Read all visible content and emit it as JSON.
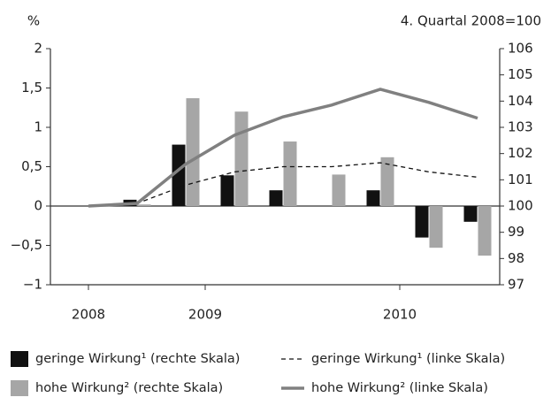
{
  "chart_data": {
    "type": "bar",
    "ylabel": "%",
    "y2label": "4. Quartal 2008=100",
    "x": [
      0,
      1,
      2,
      3,
      4,
      5,
      6,
      7,
      8
    ],
    "xlim": [
      0,
      8
    ],
    "xticks": [
      {
        "value": 0,
        "label": "2008"
      },
      {
        "value": 2.4,
        "label": "2009"
      },
      {
        "value": 6.4,
        "label": "2010"
      }
    ],
    "ylim": [
      -1,
      2
    ],
    "yticks": [
      {
        "value": -1,
        "label": "−1"
      },
      {
        "value": -0.5,
        "label": "−0,5"
      },
      0,
      {
        "value": 0.5,
        "label": "0,5"
      },
      1,
      {
        "value": 1.5,
        "label": "1,5"
      },
      2
    ],
    "y2lim": [
      97,
      106
    ],
    "y2ticks": [
      97,
      98,
      99,
      100,
      101,
      102,
      103,
      104,
      105,
      106
    ],
    "series": [
      {
        "name": "geringe Wirkung¹ (rechte Skala)",
        "kind": "bar",
        "color": "#111111",
        "offset": -1,
        "values": [
          null,
          0.08,
          0.78,
          0.39,
          0.2,
          0,
          0.2,
          -0.4,
          -0.2
        ]
      },
      {
        "name": "geringe Wirkung¹ (linke Skala)",
        "kind": "line",
        "axis": "y2",
        "color": "#111111",
        "dashed": true,
        "values": [
          100,
          100.1,
          100.8,
          101.3,
          101.5,
          101.5,
          101.65,
          101.3,
          101.1
        ]
      },
      {
        "name": "hohe Wirkung² (rechte Skala)",
        "kind": "bar",
        "color": "#a6a6a6",
        "offset": 1,
        "values": [
          null,
          0.02,
          1.37,
          1.2,
          0.82,
          0.4,
          0.62,
          -0.53,
          -0.63
        ]
      },
      {
        "name": "hohe Wirkung² (linke Skala)",
        "kind": "line",
        "axis": "y2",
        "color": "#808080",
        "dashed": false,
        "values": [
          100,
          100.1,
          101.6,
          102.7,
          103.4,
          103.85,
          104.45,
          103.95,
          103.35
        ]
      }
    ]
  }
}
